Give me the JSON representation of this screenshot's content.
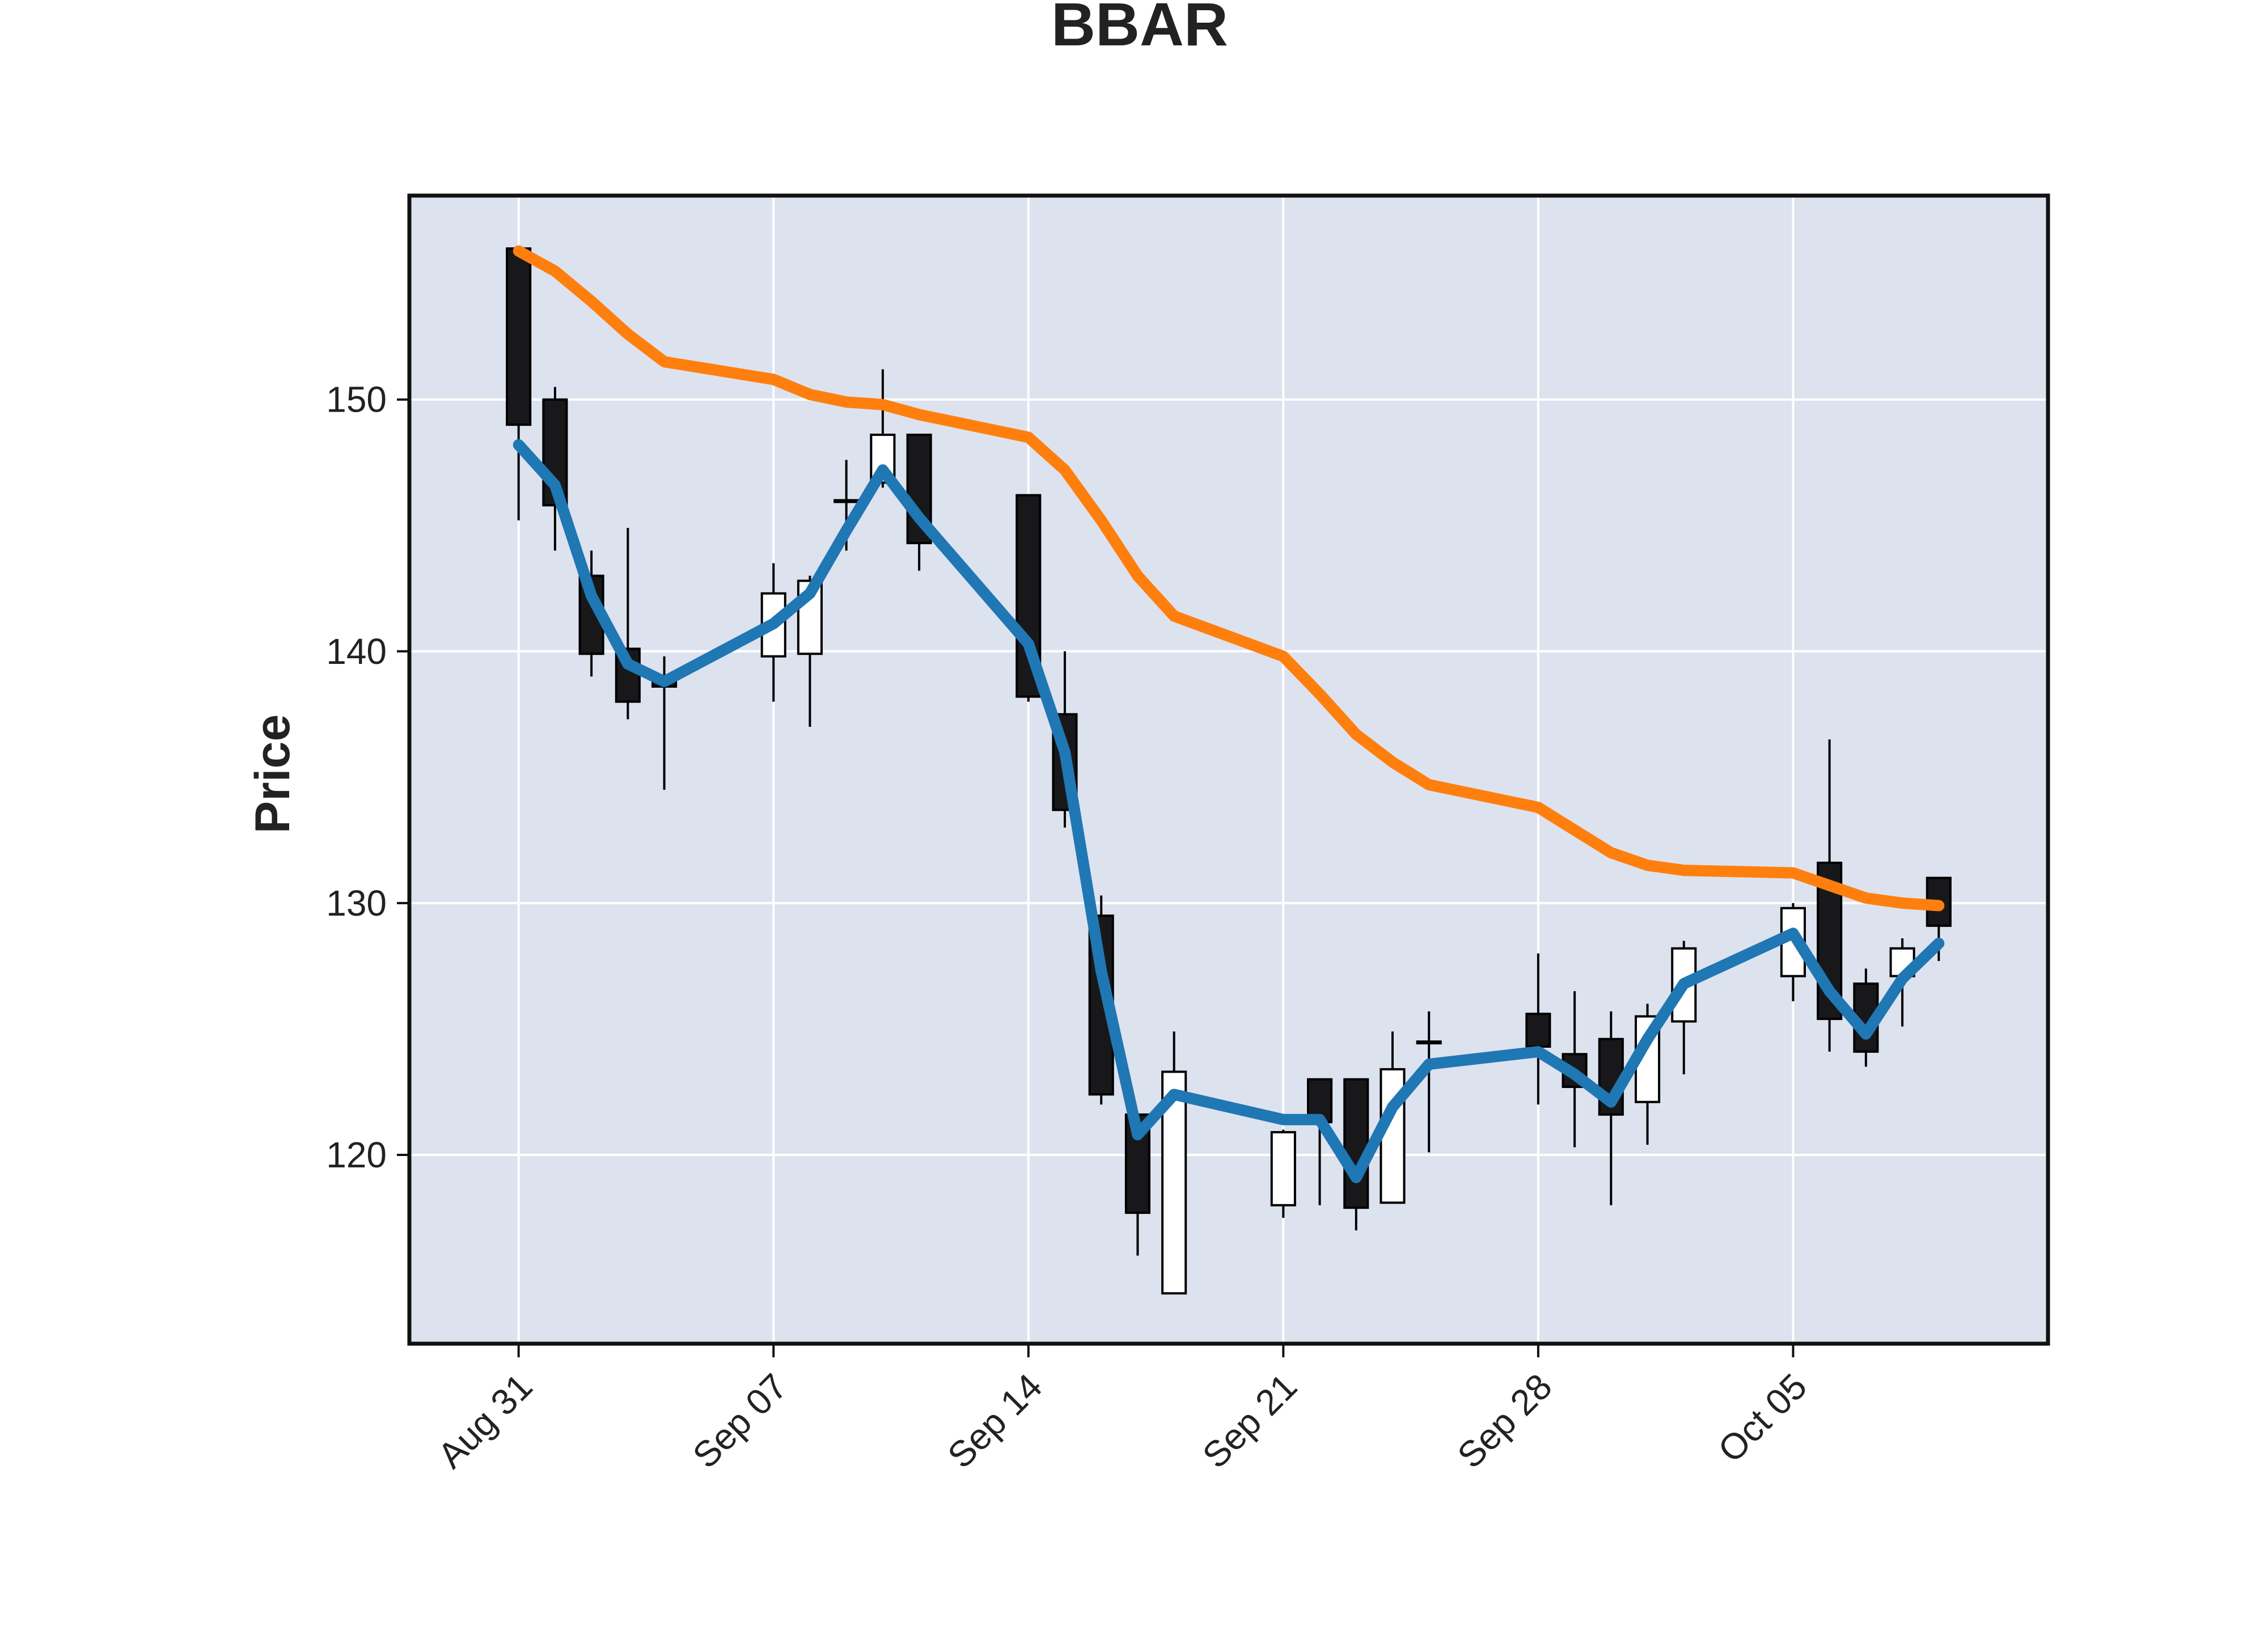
{
  "colors": {
    "plot_background": "#dde2ef",
    "grid": "#ffffff",
    "up_candle": "#ffffff",
    "down_candle": "#18181a",
    "candle_edge": "#000000",
    "series_blue": "#1f77b4",
    "series_orange": "#ff7f0e"
  },
  "chart_data": {
    "type": "candlestick",
    "title": "BBAR",
    "xlabel": "",
    "ylabel": "Price",
    "grid": true,
    "legend": "none",
    "year": 2020,
    "xlim": [
      "2020-08-28",
      "2020-10-12"
    ],
    "ylim": [
      112.5,
      158.1
    ],
    "x_ticks": [
      {
        "date": "2020-08-31",
        "label": "Aug 31"
      },
      {
        "date": "2020-09-07",
        "label": "Sep 07"
      },
      {
        "date": "2020-09-14",
        "label": "Sep 14"
      },
      {
        "date": "2020-09-21",
        "label": "Sep 21"
      },
      {
        "date": "2020-09-28",
        "label": "Sep 28"
      },
      {
        "date": "2020-10-05",
        "label": "Oct 05"
      }
    ],
    "y_ticks": [
      120,
      130,
      140,
      150
    ],
    "candles": [
      {
        "date": "2020-08-31",
        "open": 156.0,
        "high": 156.0,
        "low": 145.2,
        "close": 149.0
      },
      {
        "date": "2020-09-01",
        "open": 150.0,
        "high": 150.5,
        "low": 144.0,
        "close": 145.8
      },
      {
        "date": "2020-09-02",
        "open": 143.0,
        "high": 144.0,
        "low": 139.0,
        "close": 139.9
      },
      {
        "date": "2020-09-03",
        "open": 140.1,
        "high": 144.9,
        "low": 137.3,
        "close": 138.0
      },
      {
        "date": "2020-09-04",
        "open": 138.9,
        "high": 139.8,
        "low": 134.5,
        "close": 138.6
      },
      {
        "date": "2020-09-07",
        "open": 139.8,
        "high": 143.5,
        "low": 138.0,
        "close": 142.3
      },
      {
        "date": "2020-09-08",
        "open": 139.9,
        "high": 143.0,
        "low": 137.0,
        "close": 142.8
      },
      {
        "date": "2020-09-09",
        "open": 146.0,
        "high": 147.6,
        "low": 144.0,
        "close": 146.0
      },
      {
        "date": "2020-09-10",
        "open": 146.7,
        "high": 151.2,
        "low": 146.5,
        "close": 148.6
      },
      {
        "date": "2020-09-11",
        "open": 148.6,
        "high": 148.6,
        "low": 143.2,
        "close": 144.3
      },
      {
        "date": "2020-09-14",
        "open": 146.2,
        "high": 146.2,
        "low": 138.0,
        "close": 138.2
      },
      {
        "date": "2020-09-15",
        "open": 137.5,
        "high": 140.0,
        "low": 133.0,
        "close": 133.7
      },
      {
        "date": "2020-09-16",
        "open": 129.5,
        "high": 130.3,
        "low": 122.0,
        "close": 122.4
      },
      {
        "date": "2020-09-17",
        "open": 121.6,
        "high": 121.6,
        "low": 116.0,
        "close": 117.7
      },
      {
        "date": "2020-09-18",
        "open": 114.5,
        "high": 124.9,
        "low": 114.5,
        "close": 123.3
      },
      {
        "date": "2020-09-21",
        "open": 118.0,
        "high": 121.0,
        "low": 117.5,
        "close": 120.9
      },
      {
        "date": "2020-09-22",
        "open": 123.0,
        "high": 123.0,
        "low": 118.0,
        "close": 121.3
      },
      {
        "date": "2020-09-23",
        "open": 123.0,
        "high": 123.0,
        "low": 117.0,
        "close": 117.9
      },
      {
        "date": "2020-09-24",
        "open": 118.1,
        "high": 124.9,
        "low": 118.1,
        "close": 123.4
      },
      {
        "date": "2020-09-25",
        "open": 124.5,
        "high": 125.7,
        "low": 120.1,
        "close": 124.5
      },
      {
        "date": "2020-09-28",
        "open": 125.6,
        "high": 128.0,
        "low": 122.0,
        "close": 124.3
      },
      {
        "date": "2020-09-29",
        "open": 124.0,
        "high": 126.5,
        "low": 120.3,
        "close": 122.7
      },
      {
        "date": "2020-09-30",
        "open": 124.6,
        "high": 125.7,
        "low": 118.0,
        "close": 121.6
      },
      {
        "date": "2020-10-01",
        "open": 122.1,
        "high": 126.0,
        "low": 120.4,
        "close": 125.5
      },
      {
        "date": "2020-10-02",
        "open": 125.3,
        "high": 128.5,
        "low": 123.2,
        "close": 128.2
      },
      {
        "date": "2020-10-05",
        "open": 127.1,
        "high": 130.0,
        "low": 126.1,
        "close": 129.8
      },
      {
        "date": "2020-10-06",
        "open": 131.6,
        "high": 136.5,
        "low": 124.1,
        "close": 125.4
      },
      {
        "date": "2020-10-07",
        "open": 126.8,
        "high": 127.4,
        "low": 123.5,
        "close": 124.1
      },
      {
        "date": "2020-10-08",
        "open": 127.1,
        "high": 128.6,
        "low": 125.1,
        "close": 128.2
      },
      {
        "date": "2020-10-09",
        "open": 131.0,
        "high": 131.0,
        "low": 127.7,
        "close": 129.1
      }
    ],
    "series": [
      {
        "color": "#1f77b4",
        "values": [
          148.2,
          146.6,
          142.2,
          139.5,
          138.8,
          141.1,
          142.3,
          144.8,
          147.2,
          145.3,
          140.3,
          136.0,
          127.3,
          120.8,
          122.4,
          121.4,
          121.4,
          119.1,
          121.9,
          123.6,
          124.1,
          123.2,
          122.1,
          124.6,
          126.8,
          128.8,
          126.5,
          124.8,
          127.0,
          128.4
        ]
      },
      {
        "color": "#ff7f0e",
        "values": [
          155.9,
          155.1,
          153.9,
          152.6,
          151.5,
          150.8,
          150.2,
          149.9,
          149.8,
          149.4,
          148.5,
          147.2,
          145.2,
          143.0,
          141.4,
          139.8,
          138.3,
          136.7,
          135.6,
          134.7,
          133.8,
          132.9,
          132.0,
          131.5,
          131.3,
          131.2,
          130.7,
          130.2,
          130.0,
          129.9
        ]
      }
    ]
  }
}
